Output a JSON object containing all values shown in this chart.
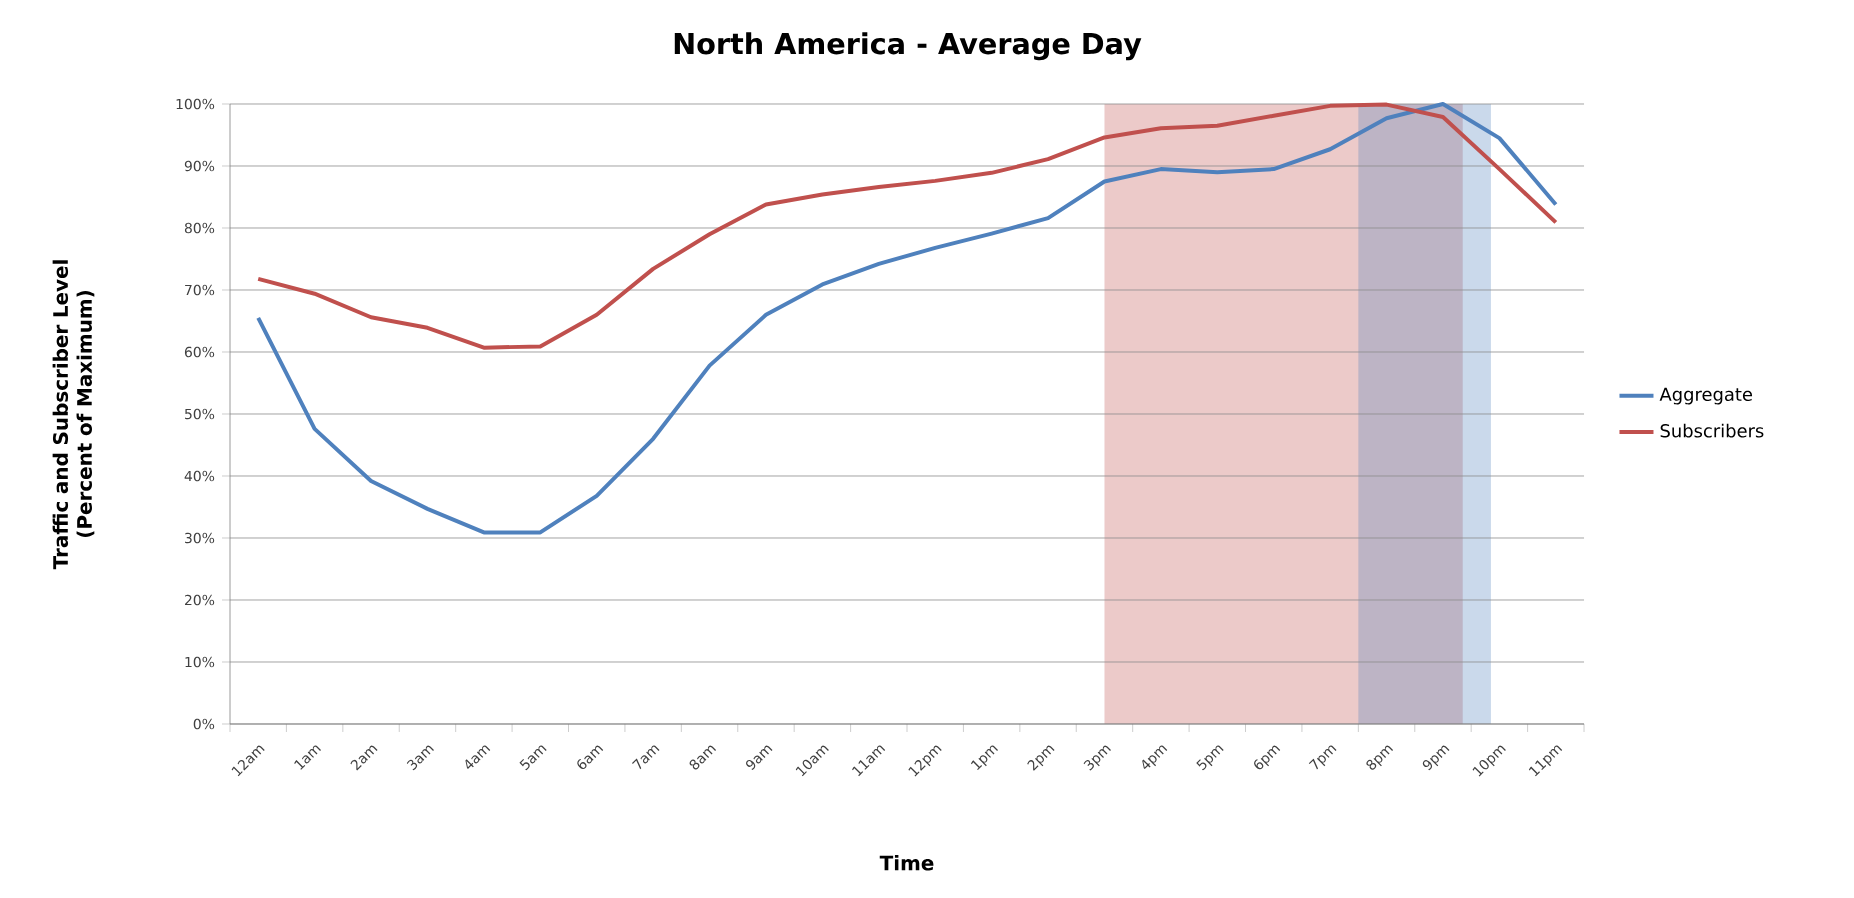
{
  "chart_data": {
    "type": "line",
    "title": "North America - Average Day",
    "xlabel": "Time",
    "ylabel": "Traffic and Subscriber Level (Percent of Maximum)",
    "categories": [
      "12am",
      "1am",
      "2am",
      "3am",
      "4am",
      "5am",
      "6am",
      "7am",
      "8am",
      "9am",
      "10am",
      "11am",
      "12pm",
      "1pm",
      "2pm",
      "3pm",
      "4pm",
      "5pm",
      "6pm",
      "7pm",
      "8pm",
      "9pm",
      "10pm",
      "11pm"
    ],
    "series": [
      {
        "name": "Aggregate",
        "color": "#4f81bd",
        "values": [
          65.5,
          47.6,
          39.2,
          34.7,
          30.9,
          30.9,
          36.8,
          46,
          57.8,
          66,
          70.9,
          74.2,
          76.8,
          79.1,
          81.6,
          87.5,
          89.5,
          89,
          89.5,
          92.7,
          97.7,
          100,
          94.5,
          83.8
        ]
      },
      {
        "name": "Subscribers",
        "color": "#c0504d",
        "values": [
          71.8,
          69.4,
          65.6,
          63.9,
          60.7,
          60.9,
          66,
          73.4,
          79,
          83.8,
          85.4,
          86.6,
          87.6,
          88.9,
          91.1,
          94.6,
          96.1,
          96.5,
          98.1,
          99.7,
          99.9,
          97.9,
          89.5,
          80.9
        ]
      }
    ],
    "ylim": [
      0,
      100
    ],
    "yticks": [
      {
        "value": 0,
        "label": "0%"
      },
      {
        "value": 10,
        "label": "10%"
      },
      {
        "value": 20,
        "label": "20%"
      },
      {
        "value": 30,
        "label": "30%"
      },
      {
        "value": 40,
        "label": "40%"
      },
      {
        "value": 50,
        "label": "50%"
      },
      {
        "value": 60,
        "label": "60%"
      },
      {
        "value": 70,
        "label": "70%"
      },
      {
        "value": 80,
        "label": "80%"
      },
      {
        "value": 90,
        "label": "90%"
      },
      {
        "value": 100,
        "label": "100%"
      }
    ],
    "grid": "y",
    "legend": "right",
    "marker": "none",
    "line_style": "solid"
  }
}
